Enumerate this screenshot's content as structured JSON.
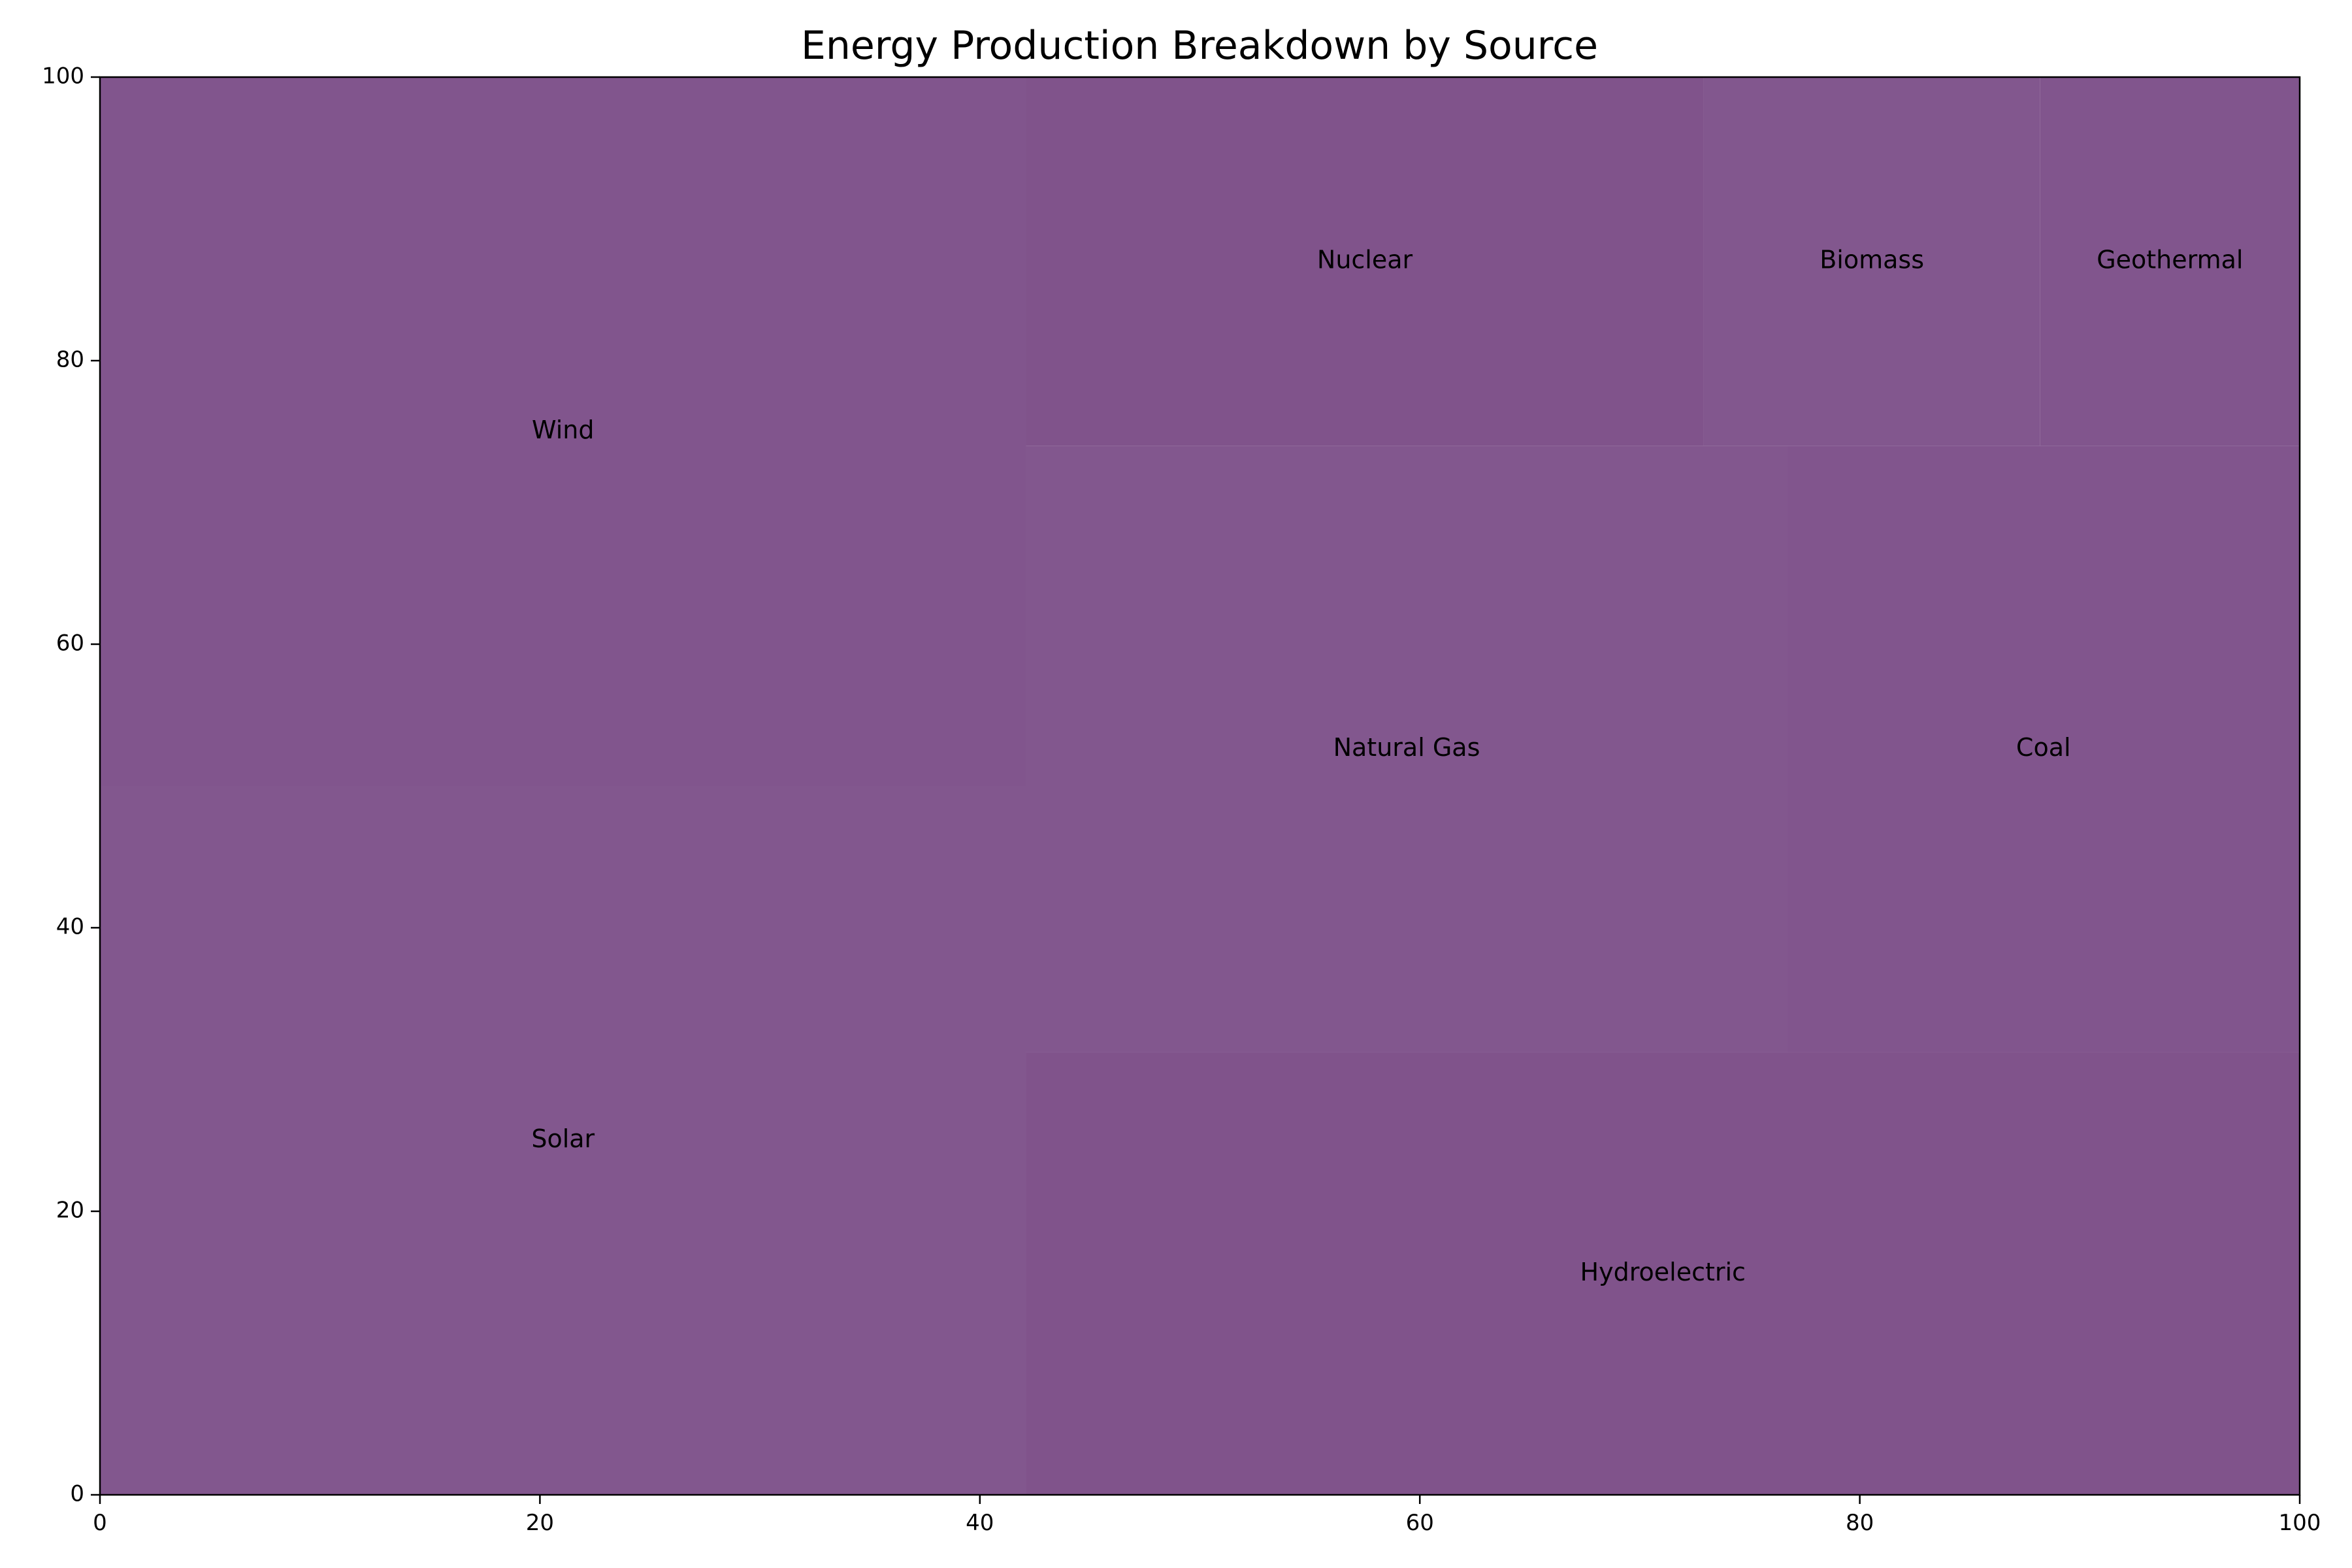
{
  "chart_data": {
    "type": "treemap",
    "title": "Energy Production Breakdown by Source",
    "xlabel": "",
    "ylabel": "",
    "xlim": [
      0,
      100
    ],
    "ylim": [
      0,
      100
    ],
    "x_ticks": [
      0,
      20,
      40,
      60,
      80,
      100
    ],
    "y_ticks": [
      0,
      20,
      40,
      60,
      80,
      100
    ],
    "grid": false,
    "color": "#7d5089",
    "alpha": 0.7,
    "rects": [
      {
        "label": "Solar",
        "x0": 0,
        "y0": 0,
        "x1": 42.1,
        "y1": 50.0
      },
      {
        "label": "Wind",
        "x0": 0,
        "y0": 50.0,
        "x1": 42.1,
        "y1": 100
      },
      {
        "label": "Hydroelectric",
        "x0": 42.1,
        "y0": 0,
        "x1": 100,
        "y1": 31.2
      },
      {
        "label": "Natural Gas",
        "x0": 42.1,
        "y0": 31.2,
        "x1": 76.7,
        "y1": 74.0
      },
      {
        "label": "Coal",
        "x0": 76.7,
        "y0": 31.2,
        "x1": 100,
        "y1": 74.0
      },
      {
        "label": "Nuclear",
        "x0": 42.1,
        "y0": 74.0,
        "x1": 72.9,
        "y1": 100
      },
      {
        "label": "Biomass",
        "x0": 72.9,
        "y0": 74.0,
        "x1": 88.2,
        "y1": 100
      },
      {
        "label": "Geothermal",
        "x0": 88.2,
        "y0": 74.0,
        "x1": 100,
        "y1": 100
      }
    ]
  }
}
